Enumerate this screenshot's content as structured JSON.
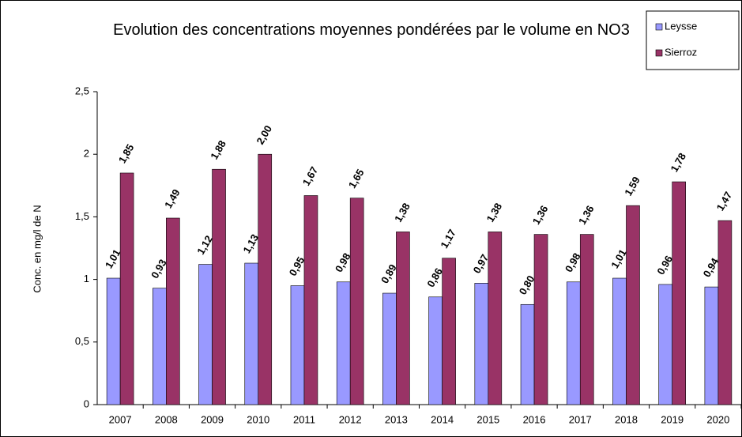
{
  "chart_data": {
    "type": "bar",
    "title": "Evolution des concentrations moyennes pondérées par le volume en NO3",
    "y_label": "Conc. en mg/l de N",
    "categories": [
      "2007",
      "2008",
      "2009",
      "2010",
      "2011",
      "2012",
      "2013",
      "2014",
      "2015",
      "2016",
      "2017",
      "2018",
      "2019",
      "2020"
    ],
    "series": [
      {
        "name": "Leysse",
        "color": "#9999ff",
        "values": [
          1.01,
          0.93,
          1.12,
          1.13,
          0.95,
          0.98,
          0.89,
          0.86,
          0.97,
          0.8,
          0.98,
          1.01,
          0.96,
          0.94
        ],
        "value_labels": [
          "1,01",
          "0,93",
          "1,12",
          "1,13",
          "0,95",
          "0,98",
          "0,89",
          "0,86",
          "0,97",
          "0,80",
          "0,98",
          "1,01",
          "0,96",
          "0,94"
        ]
      },
      {
        "name": "Sierroz",
        "color": "#993366",
        "values": [
          1.85,
          1.49,
          1.88,
          2.0,
          1.67,
          1.65,
          1.38,
          1.17,
          1.38,
          1.36,
          1.36,
          1.59,
          1.78,
          1.47
        ],
        "value_labels": [
          "1,85",
          "1,49",
          "1,88",
          "2,00",
          "1,67",
          "1,65",
          "1,38",
          "1,17",
          "1,38",
          "1,36",
          "1,36",
          "1,59",
          "1,78",
          "1,47"
        ]
      }
    ],
    "ylim": [
      0,
      2.5
    ],
    "yticks": [
      0,
      {
        "value": 0.5,
        "label": "0,5"
      },
      1,
      {
        "value": 1.5,
        "label": "1,5"
      },
      2,
      {
        "value": 2.5,
        "label": "2,5"
      }
    ],
    "legend": "top-right"
  }
}
